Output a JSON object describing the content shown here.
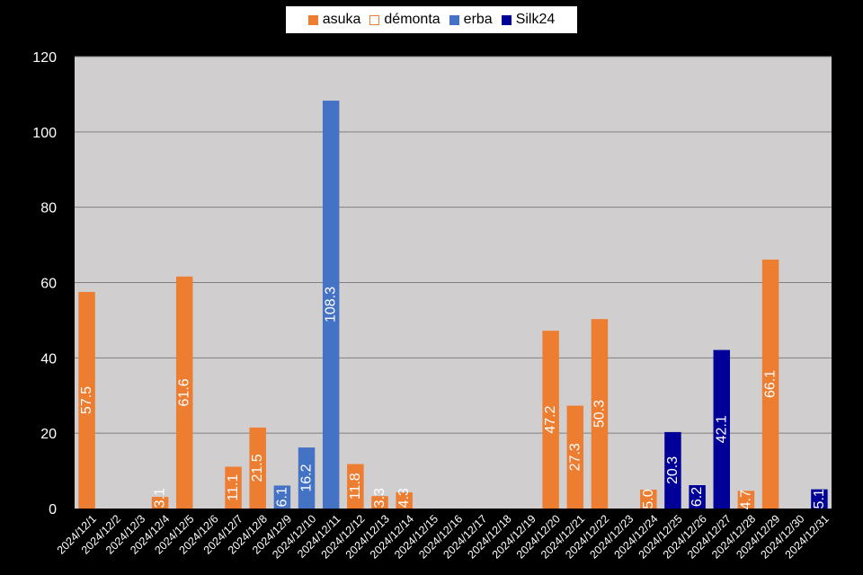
{
  "chart_data": {
    "type": "bar",
    "categories": [
      "2024/12/1",
      "2024/12/2",
      "2024/12/3",
      "2024/12/4",
      "2024/12/5",
      "2024/12/6",
      "2024/12/7",
      "2024/12/8",
      "2024/12/9",
      "2024/12/10",
      "2024/12/11",
      "2024/12/12",
      "2024/12/13",
      "2024/12/14",
      "2024/12/15",
      "2024/12/16",
      "2024/12/17",
      "2024/12/18",
      "2024/12/19",
      "2024/12/20",
      "2024/12/21",
      "2024/12/22",
      "2024/12/23",
      "2024/12/24",
      "2024/12/25",
      "2024/12/26",
      "2024/12/27",
      "2024/12/28",
      "2024/12/29",
      "2024/12/30",
      "2024/12/31"
    ],
    "series": [
      {
        "name": "asuka",
        "color": "#ED7D31",
        "style": "filled",
        "values": [
          57.5,
          null,
          null,
          3.1,
          61.6,
          null,
          11.1,
          21.5,
          null,
          null,
          null,
          11.8,
          3.3,
          4.3,
          null,
          null,
          null,
          null,
          null,
          47.2,
          27.3,
          50.3,
          null,
          5.0,
          null,
          null,
          null,
          4.7,
          66.1,
          null,
          null
        ],
        "labels": [
          "57.5",
          null,
          null,
          "3.1",
          "61.6",
          null,
          "11.1",
          "21.5",
          null,
          null,
          null,
          "11.8",
          "3.3",
          "4.3",
          null,
          null,
          null,
          null,
          null,
          "47.2",
          "27.3",
          "50.3",
          null,
          "5.0",
          null,
          null,
          null,
          "4.7",
          "66.1",
          null,
          null
        ]
      },
      {
        "name": "démonta",
        "color": "#ED7D31",
        "style": "outline",
        "values": [
          null,
          null,
          null,
          null,
          null,
          null,
          null,
          null,
          null,
          null,
          null,
          null,
          null,
          null,
          null,
          null,
          null,
          null,
          null,
          null,
          null,
          null,
          null,
          null,
          null,
          null,
          null,
          null,
          null,
          null,
          null
        ],
        "labels": []
      },
      {
        "name": "erba",
        "color": "#4472C4",
        "style": "filled",
        "values": [
          null,
          null,
          null,
          null,
          null,
          null,
          null,
          null,
          6.1,
          16.2,
          108.3,
          null,
          null,
          null,
          null,
          null,
          null,
          null,
          null,
          null,
          null,
          null,
          null,
          null,
          null,
          null,
          null,
          null,
          null,
          null,
          null
        ],
        "labels": [
          null,
          null,
          null,
          null,
          null,
          null,
          null,
          null,
          "6.1",
          "16.2",
          "108.3",
          null,
          null,
          null,
          null,
          null,
          null,
          null,
          null,
          null,
          null,
          null,
          null,
          null,
          null,
          null,
          null,
          null,
          null,
          null,
          null
        ]
      },
      {
        "name": "Silk24",
        "color": "#000099",
        "style": "filled",
        "values": [
          null,
          null,
          null,
          null,
          null,
          null,
          null,
          null,
          null,
          null,
          null,
          null,
          null,
          null,
          null,
          null,
          null,
          null,
          null,
          null,
          null,
          null,
          null,
          null,
          20.3,
          6.2,
          42.1,
          null,
          null,
          null,
          5.1
        ],
        "labels": [
          null,
          null,
          null,
          null,
          null,
          null,
          null,
          null,
          null,
          null,
          null,
          null,
          null,
          null,
          null,
          null,
          null,
          null,
          null,
          null,
          null,
          null,
          null,
          null,
          "20.3",
          "6.2",
          "42.1",
          null,
          null,
          null,
          "5.1"
        ]
      }
    ],
    "ylim": [
      0,
      120
    ],
    "yticks": [
      "0",
      "20",
      "40",
      "60",
      "80",
      "100",
      "120"
    ],
    "grid": true,
    "legend_position": "top",
    "plot_background": "#D0CECE",
    "page_background": "#000000",
    "gridline_color": "#808080",
    "text_color": "#FFFFFF"
  },
  "legend": [
    {
      "label": "asuka"
    },
    {
      "label": "démonta"
    },
    {
      "label": "erba"
    },
    {
      "label": "Silk24"
    }
  ]
}
